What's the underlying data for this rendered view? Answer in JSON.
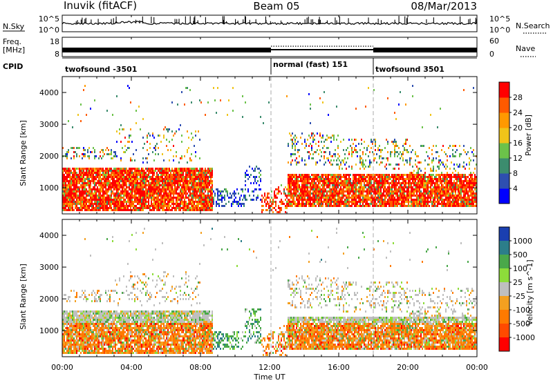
{
  "header": {
    "station": "Inuvik (fitACF)",
    "beam": "Beam 05",
    "date": "08/Mar/2013"
  },
  "left_labels": {
    "nsky": "N.Sky",
    "nsky_top": "10^5",
    "nsky_bottom": "10^0",
    "freq_top": "Freq.",
    "freq_unit": "[MHz]",
    "freq_max": "18",
    "freq_min": "8",
    "cpid": "CPID"
  },
  "right_labels": {
    "nsearch": "N.Search",
    "nsearch_top": "10^5",
    "nsearch_bottom": "10^0",
    "nave": "Nave",
    "nave_max": "60",
    "nave_min": "0"
  },
  "cpid_segments": [
    {
      "label": "twofsound -3501",
      "start_hour": 0,
      "end_hour": 12
    },
    {
      "label": "normal (fast) 151",
      "start_hour": 12,
      "end_hour": 18
    },
    {
      "label": "twofsound 3501",
      "start_hour": 18,
      "end_hour": 24
    }
  ],
  "chart_data": [
    {
      "type": "heatmap",
      "panel": "power",
      "ylabel": "Slant Range [km]",
      "y_ticks": [
        1000,
        2000,
        3000,
        4000
      ],
      "ylim": [
        180,
        4500
      ],
      "xlim": [
        0,
        24
      ],
      "colorbar": {
        "label": "Power [dB]",
        "ticks": [
          "4",
          "8",
          "12",
          "16",
          "20",
          "24",
          "28"
        ],
        "colors": [
          "#0000ff",
          "#2e4fb0",
          "#3c8c6e",
          "#6cc24a",
          "#f0c419",
          "#ff9900",
          "#ff5a00",
          "#ff0000"
        ]
      }
    },
    {
      "type": "heatmap",
      "panel": "velocity",
      "ylabel": "Slant Range [km]",
      "y_ticks": [
        1000,
        2000,
        3000,
        4000
      ],
      "ylim": [
        180,
        4500
      ],
      "xlim": [
        0,
        24
      ],
      "x_ticks": [
        "00:00",
        "04:00",
        "08:00",
        "12:00",
        "16:00",
        "20:00",
        "00:00"
      ],
      "xlabel": "Time UT",
      "colorbar": {
        "label": "Velocity [m s^-1]",
        "ticks": [
          "1000",
          "500",
          "100",
          "25",
          "-25",
          "-100",
          "-500",
          "-1000"
        ],
        "colors": [
          "#1a3fb0",
          "#2c7e8a",
          "#4aa84a",
          "#8ddc3a",
          "#bfbfbf",
          "#f4a020",
          "#ff7a00",
          "#ff4a00",
          "#ff0000"
        ]
      }
    }
  ]
}
